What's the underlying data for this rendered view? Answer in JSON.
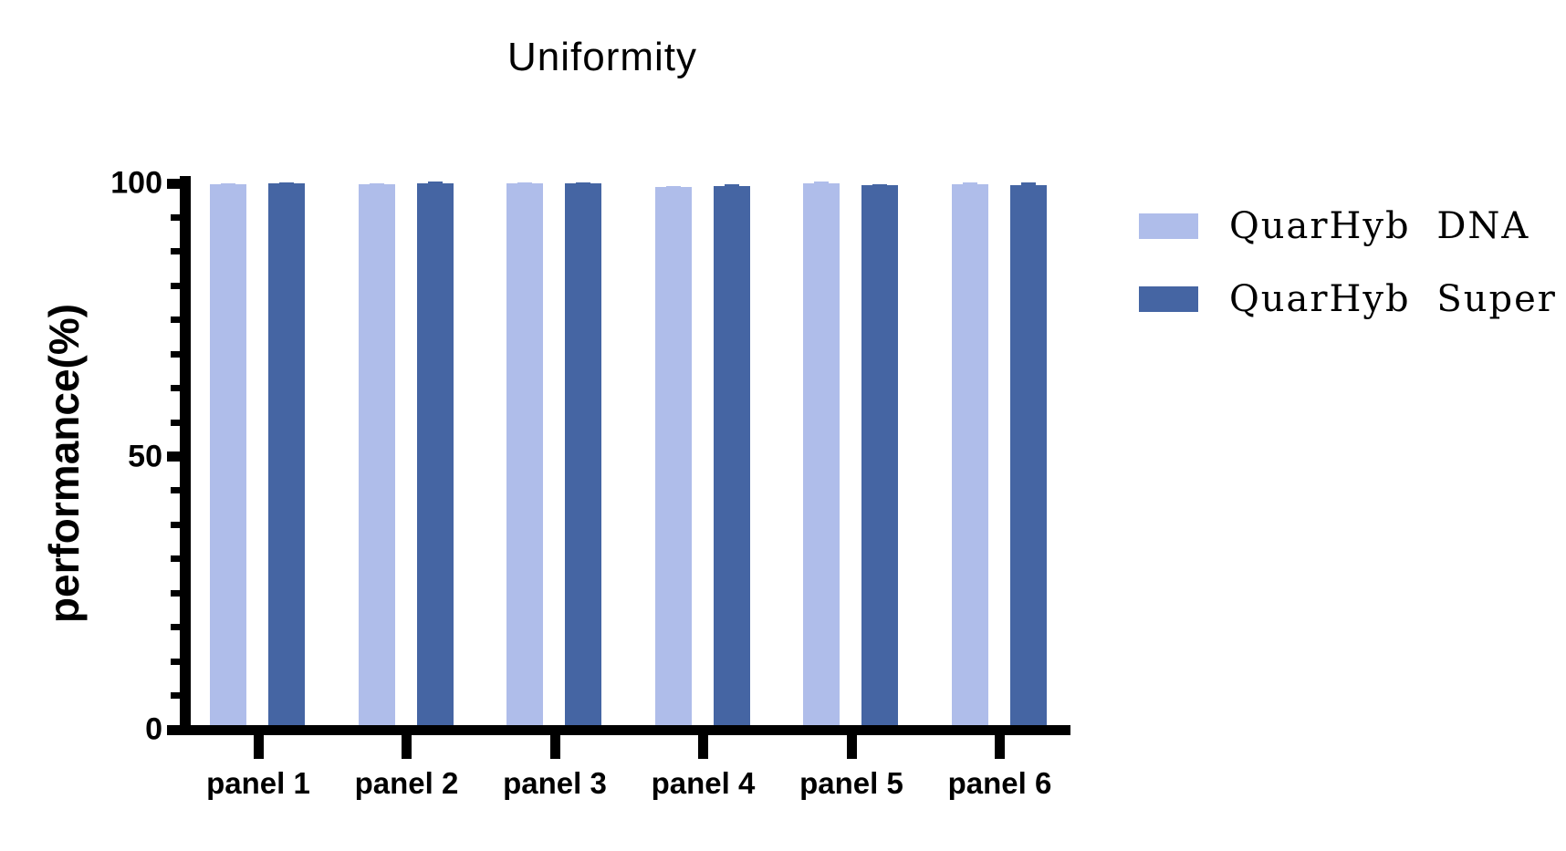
{
  "chart_data": {
    "type": "bar",
    "title": "Uniformity",
    "ylabel": "performance(%)",
    "xlabel": "",
    "ylim": [
      0,
      100
    ],
    "yticks": [
      0,
      50,
      100
    ],
    "minor_tick_step": 6.25,
    "grid": false,
    "legend_position": "right",
    "categories": [
      "panel 1",
      "panel 2",
      "panel 3",
      "panel 4",
      "panel 5",
      "panel 6"
    ],
    "series": [
      {
        "name": "QuarHyb DNA",
        "color": "#AFBDEA",
        "values": [
          99.9,
          99.9,
          100,
          99.3,
          100,
          99.9
        ],
        "errors": [
          0.1,
          0.1,
          0.1,
          0.2,
          0.3,
          0.2
        ]
      },
      {
        "name": "QuarHyb Super",
        "color": "#4565A3",
        "values": [
          100,
          100,
          100,
          99.5,
          99.7,
          99.6
        ],
        "errors": [
          0.1,
          0.4,
          0.1,
          0.3,
          0.2,
          0.6
        ]
      }
    ],
    "axis_color": "#000000",
    "background_color": "#ffffff"
  }
}
